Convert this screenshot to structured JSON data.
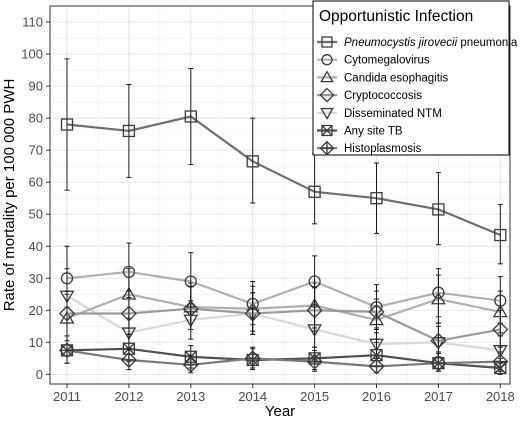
{
  "chart_data": {
    "type": "line",
    "xlabel": "Year",
    "ylabel": "Rate of mortality per 100 000 PWH",
    "x": [
      2011,
      2012,
      2013,
      2014,
      2015,
      2016,
      2017,
      2018
    ],
    "x_tick_labels": [
      "2011",
      "2012",
      "2013",
      "2014",
      "2015",
      "2016",
      "2017",
      "2018"
    ],
    "y_ticks": [
      0,
      10,
      20,
      30,
      40,
      50,
      60,
      70,
      80,
      90,
      100,
      110
    ],
    "y_tick_labels": [
      "0",
      "10",
      "20",
      "30",
      "40",
      "50",
      "60",
      "70",
      "80",
      "90",
      "100",
      "110"
    ],
    "ylim": [
      -3,
      115
    ],
    "grid": true,
    "legend": {
      "title": "Opportunistic Infection",
      "placement": "top-right"
    },
    "series": [
      {
        "name": "Pneumocystis jirovecii pneumonia",
        "name_italic": "Pneumocystis jirovecii",
        "name_rest": " pneumonia",
        "marker": "square",
        "color": "#6e6e6e",
        "values": [
          78,
          76,
          80.5,
          66.5,
          57,
          55,
          51.5,
          43.5
        ],
        "lower": [
          57.5,
          61.5,
          65.5,
          53.5,
          47,
          44,
          40.5,
          34.5
        ],
        "upper": [
          98.5,
          90.5,
          95.5,
          80,
          69,
          66,
          63,
          53
        ]
      },
      {
        "name": "Cytomegalovirus",
        "marker": "circle",
        "color": "#b0b0b0",
        "values": [
          30,
          32,
          29,
          22,
          29,
          21,
          25.5,
          23
        ],
        "lower": [
          21,
          24,
          21,
          15.5,
          21,
          14,
          18,
          16
        ],
        "upper": [
          40,
          41,
          38,
          29,
          37,
          28,
          33,
          30.5
        ]
      },
      {
        "name": "Candida esophagitis",
        "marker": "triangle-up",
        "color": "#b0b0b0",
        "values": [
          17.5,
          25,
          21,
          20.5,
          21.5,
          17,
          23.5,
          19.5
        ],
        "lower": [
          10.5,
          17.5,
          14,
          13.5,
          14.5,
          11,
          16,
          13
        ],
        "upper": [
          25,
          33,
          28.5,
          27.5,
          28.5,
          23.5,
          31,
          26
        ]
      },
      {
        "name": "Cryptococcosis",
        "marker": "diamond",
        "color": "#9a9a9a",
        "values": [
          19,
          19,
          20.5,
          19,
          20,
          19.5,
          10.5,
          14
        ],
        "lower": [
          12,
          12.5,
          14,
          12.5,
          13.5,
          13,
          5.5,
          8.5
        ],
        "upper": [
          26,
          26,
          27.5,
          25.5,
          27,
          26,
          16,
          20
        ]
      },
      {
        "name": "Disseminated NTM",
        "marker": "triangle-down",
        "color": "#dadada",
        "values": [
          24.5,
          13,
          17,
          19,
          14,
          9.5,
          10,
          7.5
        ],
        "lower": [
          16,
          7.5,
          11,
          12.5,
          8.5,
          5,
          5.5,
          3.5
        ],
        "upper": [
          33,
          19,
          23,
          25.5,
          20,
          14.5,
          15,
          12
        ]
      },
      {
        "name": "Any site TB",
        "marker": "square-x",
        "color": "#4f4f4f",
        "values": [
          7.5,
          8,
          5.5,
          4.5,
          5,
          6,
          3.5,
          2
        ],
        "lower": [
          3.5,
          4,
          2,
          1.5,
          1.5,
          2.5,
          1,
          0
        ],
        "upper": [
          12,
          12.5,
          9,
          8,
          8.5,
          10,
          7,
          5
        ]
      },
      {
        "name": "Histoplasmosis",
        "marker": "diamond-plus",
        "color": "#7a7a7a",
        "values": [
          7.5,
          4.5,
          3,
          5,
          4,
          2.5,
          3.5,
          4
        ],
        "lower": [
          3.5,
          1.5,
          0.5,
          2,
          1,
          0.5,
          1,
          1
        ],
        "upper": [
          12,
          8,
          6,
          8.5,
          7.5,
          5,
          6.5,
          7
        ]
      }
    ]
  }
}
